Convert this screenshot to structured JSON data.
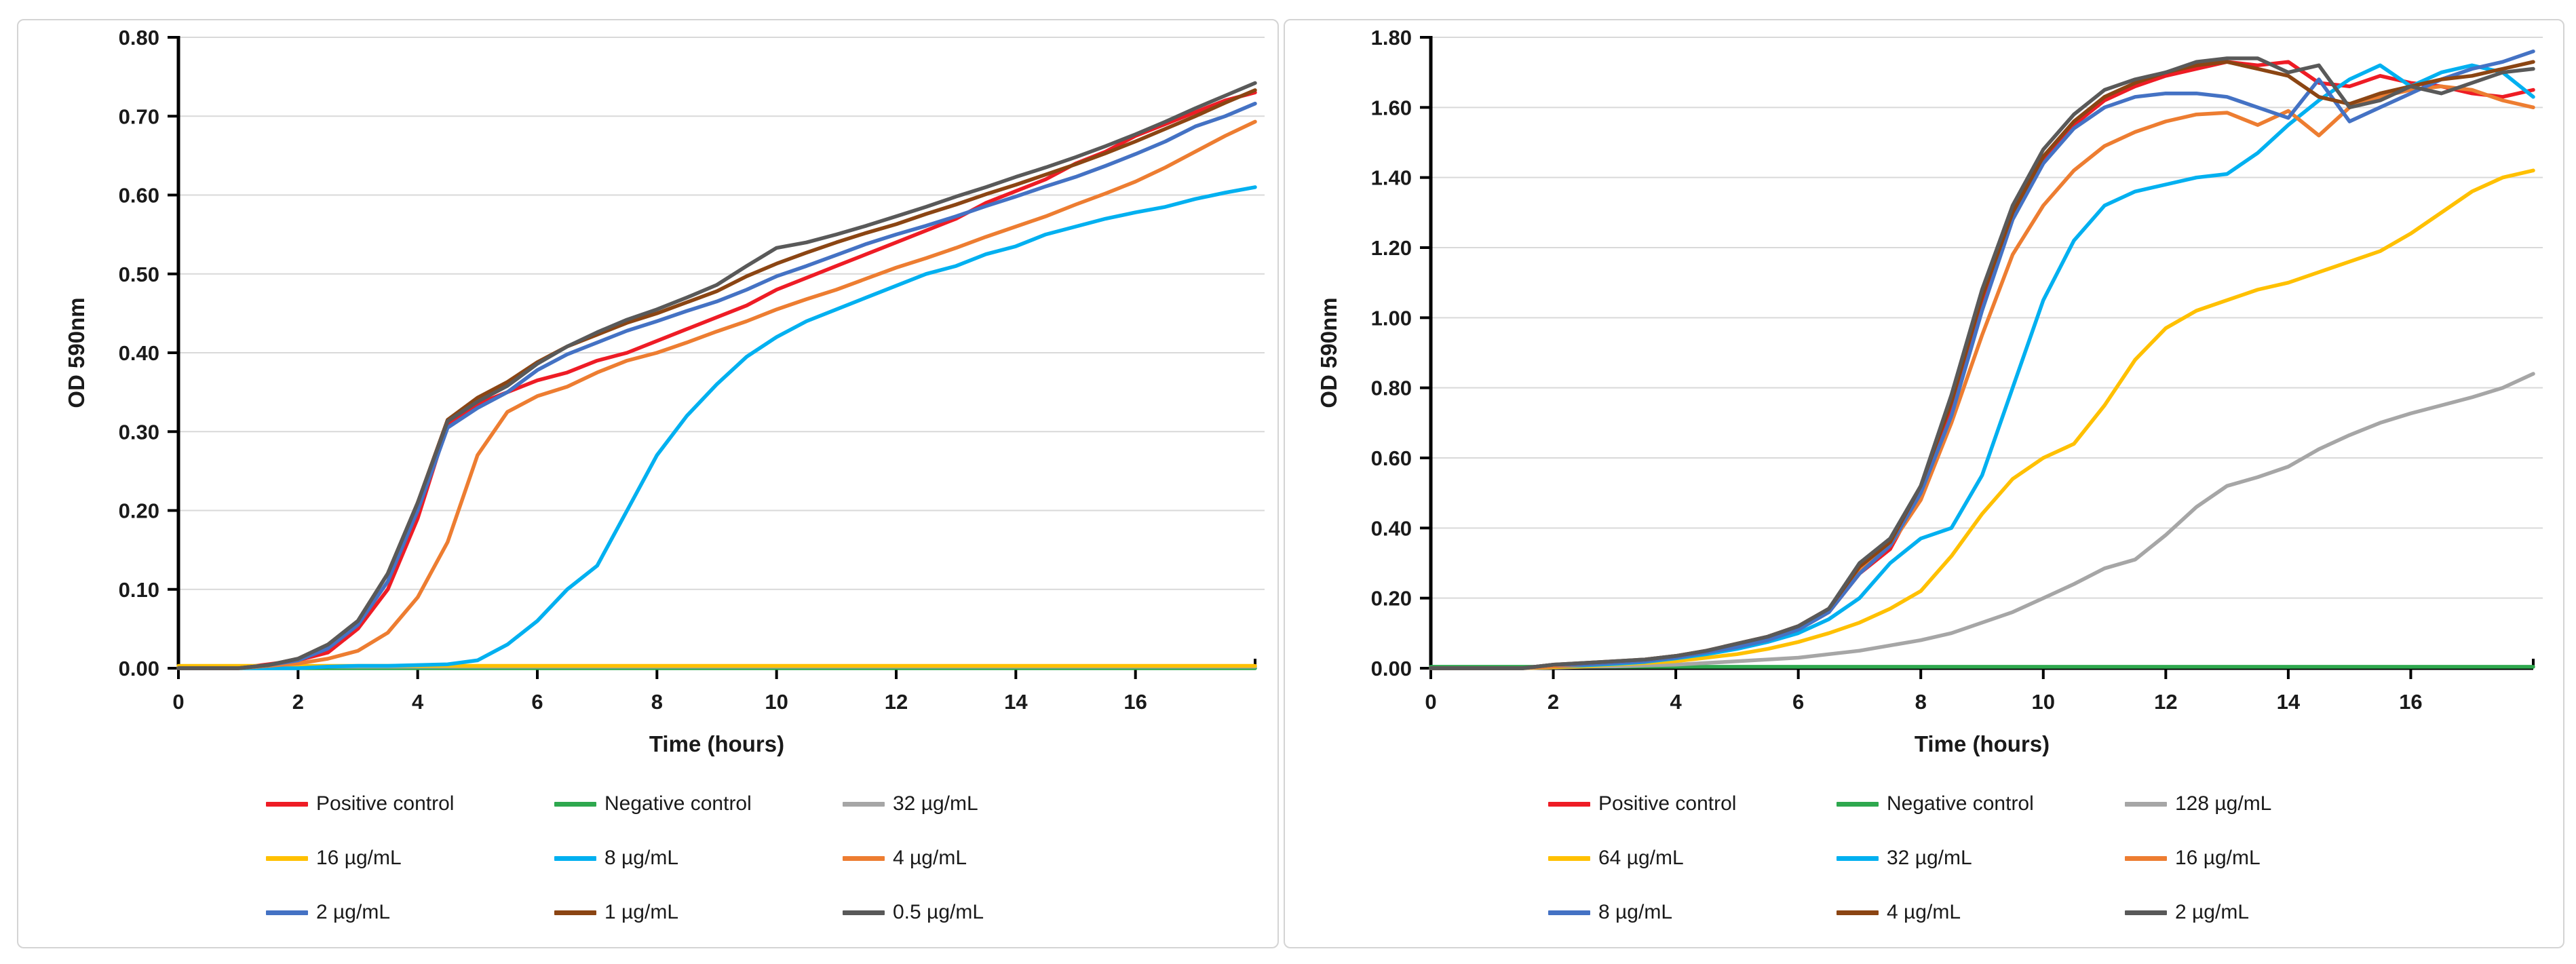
{
  "page": {
    "background": "#ffffff",
    "panel_border_color": "#d4d4d4"
  },
  "chart_data": [
    {
      "type": "line",
      "panel": "left",
      "title": "",
      "xlabel": "Time (hours)",
      "ylabel": "OD 590nm",
      "xlim": [
        0,
        18
      ],
      "xticks": [
        0,
        2,
        4,
        6,
        8,
        10,
        12,
        14,
        16
      ],
      "ylim": [
        0,
        0.8
      ],
      "ytick_step": 0.1,
      "ytick_decimals": 2,
      "grid": "horizontal",
      "gridline_color": "#d9d9d9",
      "legend_position": "bottom",
      "x": [
        0,
        0.5,
        1,
        1.5,
        2,
        2.5,
        3,
        3.5,
        4,
        4.5,
        5,
        5.5,
        6,
        6.5,
        7,
        7.5,
        8,
        8.5,
        9,
        9.5,
        10,
        10.5,
        11,
        11.5,
        12,
        12.5,
        13,
        13.5,
        14,
        14.5,
        15,
        15.5,
        16,
        16.5,
        17,
        17.5,
        18
      ],
      "series": [
        {
          "name": "Positive control",
          "color": "#ee1c25",
          "values": [
            0,
            0,
            0,
            0.005,
            0.01,
            0.02,
            0.05,
            0.1,
            0.19,
            0.31,
            0.335,
            0.35,
            0.365,
            0.375,
            0.39,
            0.4,
            0.415,
            0.43,
            0.445,
            0.46,
            0.48,
            0.495,
            0.51,
            0.525,
            0.54,
            0.555,
            0.57,
            0.59,
            0.605,
            0.62,
            0.64,
            0.655,
            0.675,
            0.69,
            0.705,
            0.72,
            0.73
          ]
        },
        {
          "name": "Negative control",
          "color": "#2ea84e",
          "values": [
            0,
            0,
            0,
            0,
            0,
            0,
            0,
            0,
            0,
            0,
            0,
            0,
            0,
            0,
            0,
            0,
            0,
            0,
            0,
            0,
            0,
            0,
            0,
            0,
            0,
            0,
            0,
            0,
            0,
            0,
            0,
            0,
            0,
            0,
            0,
            0,
            0
          ]
        },
        {
          "name": "32 µg/mL",
          "color": "#a6a6a6",
          "values": [
            0.002,
            0.002,
            0.002,
            0.002,
            0.002,
            0.002,
            0.002,
            0.002,
            0.002,
            0.002,
            0.002,
            0.002,
            0.002,
            0.002,
            0.002,
            0.002,
            0.002,
            0.002,
            0.002,
            0.002,
            0.002,
            0.002,
            0.002,
            0.002,
            0.002,
            0.002,
            0.002,
            0.002,
            0.002,
            0.002,
            0.002,
            0.002,
            0.002,
            0.002,
            0.002,
            0.002,
            0.002
          ]
        },
        {
          "name": "16 µg/mL",
          "color": "#ffc000",
          "values": [
            0.003,
            0.003,
            0.003,
            0.003,
            0.003,
            0.003,
            0.003,
            0.003,
            0.003,
            0.003,
            0.003,
            0.003,
            0.003,
            0.003,
            0.003,
            0.003,
            0.003,
            0.003,
            0.003,
            0.003,
            0.003,
            0.003,
            0.003,
            0.003,
            0.003,
            0.003,
            0.003,
            0.003,
            0.003,
            0.003,
            0.003,
            0.003,
            0.003,
            0.003,
            0.003,
            0.003,
            0.003
          ]
        },
        {
          "name": "8 µg/mL",
          "color": "#00b0f0",
          "values": [
            0,
            0,
            0,
            0,
            0,
            0.002,
            0.003,
            0.003,
            0.004,
            0.005,
            0.01,
            0.03,
            0.06,
            0.1,
            0.13,
            0.2,
            0.27,
            0.32,
            0.36,
            0.395,
            0.42,
            0.44,
            0.455,
            0.47,
            0.485,
            0.5,
            0.51,
            0.525,
            0.535,
            0.55,
            0.56,
            0.57,
            0.578,
            0.585,
            0.595,
            0.603,
            0.61
          ]
        },
        {
          "name": "4 µg/mL",
          "color": "#ed7d31",
          "values": [
            0,
            0,
            0,
            0.003,
            0.006,
            0.012,
            0.022,
            0.045,
            0.09,
            0.16,
            0.27,
            0.325,
            0.345,
            0.357,
            0.375,
            0.39,
            0.4,
            0.413,
            0.427,
            0.44,
            0.455,
            0.468,
            0.48,
            0.494,
            0.508,
            0.52,
            0.533,
            0.547,
            0.56,
            0.573,
            0.588,
            0.602,
            0.617,
            0.635,
            0.655,
            0.675,
            0.693
          ]
        },
        {
          "name": "2 µg/mL",
          "color": "#4472c4",
          "values": [
            0,
            0,
            0,
            0.004,
            0.01,
            0.025,
            0.055,
            0.11,
            0.2,
            0.305,
            0.33,
            0.35,
            0.378,
            0.398,
            0.413,
            0.428,
            0.44,
            0.453,
            0.465,
            0.48,
            0.497,
            0.51,
            0.524,
            0.538,
            0.55,
            0.561,
            0.573,
            0.586,
            0.598,
            0.611,
            0.623,
            0.637,
            0.652,
            0.668,
            0.687,
            0.7,
            0.716
          ]
        },
        {
          "name": "1 µg/mL",
          "color": "#8b4513",
          "values": [
            0,
            0,
            0,
            0.004,
            0.012,
            0.03,
            0.06,
            0.12,
            0.21,
            0.315,
            0.343,
            0.363,
            0.388,
            0.408,
            0.423,
            0.438,
            0.45,
            0.464,
            0.478,
            0.497,
            0.513,
            0.527,
            0.54,
            0.552,
            0.563,
            0.576,
            0.588,
            0.601,
            0.613,
            0.626,
            0.639,
            0.653,
            0.668,
            0.684,
            0.7,
            0.717,
            0.733
          ]
        },
        {
          "name": "0.5 µg/mL",
          "color": "#595959",
          "values": [
            0,
            0,
            0,
            0.004,
            0.012,
            0.03,
            0.06,
            0.12,
            0.21,
            0.313,
            0.338,
            0.358,
            0.386,
            0.408,
            0.426,
            0.442,
            0.455,
            0.47,
            0.486,
            0.51,
            0.533,
            0.54,
            0.55,
            0.561,
            0.573,
            0.585,
            0.598,
            0.61,
            0.623,
            0.635,
            0.648,
            0.662,
            0.677,
            0.693,
            0.71,
            0.726,
            0.742
          ]
        }
      ]
    },
    {
      "type": "line",
      "panel": "right",
      "title": "",
      "xlabel": "Time (hours)",
      "ylabel": "OD 590nm",
      "xlim": [
        0,
        18
      ],
      "xticks": [
        0,
        2,
        4,
        6,
        8,
        10,
        12,
        14,
        16
      ],
      "ylim": [
        0,
        1.8
      ],
      "ytick_step": 0.2,
      "ytick_decimals": 2,
      "grid": "horizontal",
      "gridline_color": "#d9d9d9",
      "legend_position": "bottom",
      "x": [
        0,
        0.5,
        1,
        1.5,
        2,
        2.5,
        3,
        3.5,
        4,
        4.5,
        5,
        5.5,
        6,
        6.5,
        7,
        7.5,
        8,
        8.5,
        9,
        9.5,
        10,
        10.5,
        11,
        11.5,
        12,
        12.5,
        13,
        13.5,
        14,
        14.5,
        15,
        15.5,
        16,
        16.5,
        17,
        17.5,
        18
      ],
      "series": [
        {
          "name": "Positive control",
          "color": "#ee1c25",
          "values": [
            0,
            0,
            0,
            0,
            0.01,
            0.01,
            0.015,
            0.02,
            0.03,
            0.04,
            0.06,
            0.08,
            0.11,
            0.16,
            0.27,
            0.34,
            0.5,
            0.75,
            1.05,
            1.3,
            1.45,
            1.55,
            1.62,
            1.66,
            1.69,
            1.71,
            1.73,
            1.72,
            1.73,
            1.67,
            1.66,
            1.69,
            1.67,
            1.66,
            1.64,
            1.63,
            1.65
          ]
        },
        {
          "name": "Negative control",
          "color": "#2ea84e",
          "values": [
            0.004,
            0.004,
            0.004,
            0.004,
            0.004,
            0.004,
            0.004,
            0.004,
            0.004,
            0.004,
            0.004,
            0.004,
            0.004,
            0.004,
            0.004,
            0.004,
            0.004,
            0.004,
            0.004,
            0.004,
            0.004,
            0.004,
            0.004,
            0.004,
            0.004,
            0.004,
            0.004,
            0.004,
            0.004,
            0.004,
            0.004,
            0.004,
            0.004,
            0.004,
            0.004,
            0.004,
            0.004
          ]
        },
        {
          "name": "128 µg/mL",
          "color": "#a6a6a6",
          "values": [
            0,
            0,
            0,
            0,
            0.002,
            0.004,
            0.005,
            0.008,
            0.01,
            0.015,
            0.02,
            0.025,
            0.03,
            0.04,
            0.05,
            0.065,
            0.08,
            0.1,
            0.13,
            0.16,
            0.2,
            0.24,
            0.285,
            0.31,
            0.38,
            0.46,
            0.52,
            0.545,
            0.575,
            0.625,
            0.665,
            0.7,
            0.727,
            0.75,
            0.773,
            0.8,
            0.84
          ]
        },
        {
          "name": "64 µg/mL",
          "color": "#ffc000",
          "values": [
            0,
            0,
            0,
            0,
            0.003,
            0.005,
            0.01,
            0.015,
            0.02,
            0.03,
            0.04,
            0.055,
            0.075,
            0.1,
            0.13,
            0.17,
            0.22,
            0.32,
            0.44,
            0.54,
            0.6,
            0.64,
            0.75,
            0.88,
            0.97,
            1.02,
            1.05,
            1.08,
            1.1,
            1.13,
            1.16,
            1.19,
            1.24,
            1.3,
            1.36,
            1.4,
            1.42
          ]
        },
        {
          "name": "32 µg/mL",
          "color": "#00b0f0",
          "values": [
            0,
            0,
            0,
            0,
            0.005,
            0.008,
            0.012,
            0.018,
            0.028,
            0.04,
            0.055,
            0.075,
            0.1,
            0.14,
            0.2,
            0.3,
            0.37,
            0.4,
            0.55,
            0.8,
            1.05,
            1.22,
            1.32,
            1.36,
            1.38,
            1.4,
            1.41,
            1.47,
            1.55,
            1.62,
            1.68,
            1.72,
            1.66,
            1.7,
            1.72,
            1.7,
            1.63
          ]
        },
        {
          "name": "16 µg/mL",
          "color": "#ed7d31",
          "values": [
            0,
            0,
            0,
            0,
            0.005,
            0.01,
            0.015,
            0.025,
            0.035,
            0.05,
            0.07,
            0.09,
            0.12,
            0.17,
            0.28,
            0.35,
            0.48,
            0.7,
            0.95,
            1.18,
            1.32,
            1.42,
            1.49,
            1.53,
            1.56,
            1.58,
            1.585,
            1.55,
            1.59,
            1.52,
            1.6,
            1.63,
            1.65,
            1.66,
            1.65,
            1.62,
            1.6
          ]
        },
        {
          "name": "8 µg/mL",
          "color": "#4472c4",
          "values": [
            0,
            0,
            0,
            0,
            0.01,
            0.01,
            0.015,
            0.02,
            0.03,
            0.045,
            0.06,
            0.08,
            0.11,
            0.16,
            0.27,
            0.35,
            0.5,
            0.72,
            1.02,
            1.28,
            1.44,
            1.54,
            1.6,
            1.63,
            1.64,
            1.64,
            1.63,
            1.6,
            1.57,
            1.68,
            1.56,
            1.6,
            1.64,
            1.68,
            1.71,
            1.73,
            1.76
          ]
        },
        {
          "name": "4 µg/mL",
          "color": "#8b4513",
          "values": [
            0,
            0,
            0,
            0,
            0.01,
            0.015,
            0.02,
            0.025,
            0.035,
            0.05,
            0.07,
            0.09,
            0.12,
            0.17,
            0.29,
            0.36,
            0.52,
            0.76,
            1.06,
            1.3,
            1.46,
            1.56,
            1.63,
            1.67,
            1.7,
            1.72,
            1.73,
            1.71,
            1.69,
            1.63,
            1.61,
            1.64,
            1.66,
            1.68,
            1.69,
            1.71,
            1.73
          ]
        },
        {
          "name": "2 µg/mL",
          "color": "#595959",
          "values": [
            0,
            0,
            0,
            0,
            0.01,
            0.015,
            0.02,
            0.025,
            0.035,
            0.05,
            0.07,
            0.09,
            0.12,
            0.17,
            0.3,
            0.37,
            0.52,
            0.78,
            1.08,
            1.32,
            1.48,
            1.58,
            1.65,
            1.68,
            1.7,
            1.73,
            1.74,
            1.74,
            1.7,
            1.72,
            1.6,
            1.62,
            1.66,
            1.64,
            1.67,
            1.7,
            1.71
          ]
        }
      ]
    }
  ]
}
